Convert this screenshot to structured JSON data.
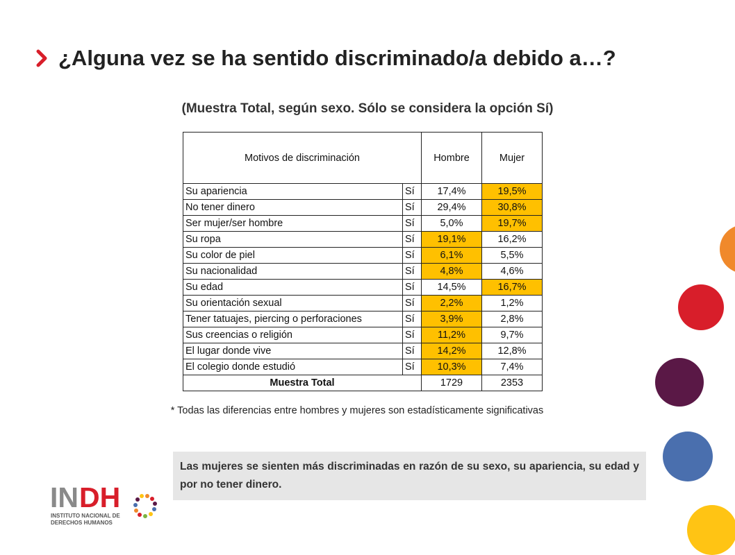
{
  "title": "¿Alguna vez se ha sentido discriminado/a debido a…?",
  "subtitle": "(Muestra Total, según sexo. Sólo se considera la opción Sí)",
  "table": {
    "headers": {
      "motivos": "Motivos de discriminación",
      "hombre": "Hombre",
      "mujer": "Mujer"
    },
    "rows": [
      {
        "motivo": "Su apariencia",
        "opcion": "Sí",
        "hombre": "17,4%",
        "mujer": "19,5%"
      },
      {
        "motivo": "No tener dinero",
        "opcion": "Sí",
        "hombre": "29,4%",
        "mujer": "30,8%"
      },
      {
        "motivo": "Ser mujer/ser hombre",
        "opcion": "Sí",
        "hombre": "5,0%",
        "mujer": "19,7%"
      },
      {
        "motivo": "Su ropa",
        "opcion": "Sí",
        "hombre": "19,1%",
        "mujer": "16,2%"
      },
      {
        "motivo": "Su color de piel",
        "opcion": "Sí",
        "hombre": "6,1%",
        "mujer": "5,5%"
      },
      {
        "motivo": "Su nacionalidad",
        "opcion": "Sí",
        "hombre": "4,8%",
        "mujer": "4,6%"
      },
      {
        "motivo": "Su edad",
        "opcion": "Sí",
        "hombre": "14,5%",
        "mujer": "16,7%"
      },
      {
        "motivo": "Su orientación sexual",
        "opcion": "Sí",
        "hombre": "2,2%",
        "mujer": "1,2%"
      },
      {
        "motivo": "Tener tatuajes, piercing o perforaciones",
        "opcion": "Sí",
        "hombre": "3,9%",
        "mujer": "2,8%"
      },
      {
        "motivo": "Sus creencias o religión",
        "opcion": "Sí",
        "hombre": "11,2%",
        "mujer": "9,7%"
      },
      {
        "motivo": "El lugar donde vive",
        "opcion": "Sí",
        "hombre": "14,2%",
        "mujer": "12,8%"
      },
      {
        "motivo": "El colegio donde estudió",
        "opcion": "Sí",
        "hombre": "10,3%",
        "mujer": "7,4%"
      }
    ],
    "highlighted_column": [
      "mujer",
      "mujer",
      "mujer",
      "hombre",
      "hombre",
      "hombre",
      "mujer",
      "hombre",
      "hombre",
      "hombre",
      "hombre",
      "hombre"
    ],
    "total": {
      "label": "Muestra Total",
      "hombre": "1729",
      "mujer": "2353"
    }
  },
  "footnote": "* Todas las diferencias entre hombres y mujeres son estadísticamente significativas",
  "note": "Las mujeres se sienten más discriminadas en razón de su sexo, su apariencia, su edad y por no tener dinero.",
  "logo": {
    "name": "INDH",
    "line1": "INSTITUTO NACIONAL DE",
    "line2": "DERECHOS HUMANOS"
  },
  "colors": {
    "highlight": "#ffc000",
    "accent_red": "#d81e2a",
    "dot_orange": "#f0892b",
    "dot_red": "#d81e2a",
    "dot_purple": "#5a1846",
    "dot_blue": "#4a6fae",
    "dot_yellow": "#ffc414",
    "note_bg": "#e6e6e6"
  }
}
